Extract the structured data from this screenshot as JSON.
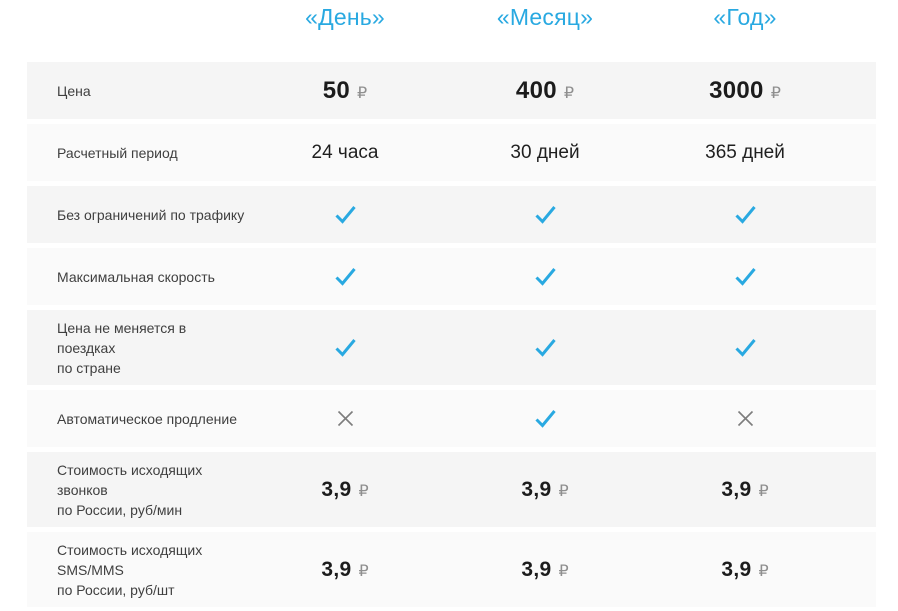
{
  "table": {
    "currency_symbol": "₽",
    "accent_color": "#29a9e1",
    "cross_color": "#7d7d7d",
    "plans": [
      "«День»",
      "«Месяц»",
      "«Год»"
    ],
    "rows": [
      {
        "label": "Цена",
        "type": "price",
        "size": "big",
        "values": [
          "50",
          "400",
          "3000"
        ]
      },
      {
        "label": "Расчетный период",
        "type": "text",
        "values": [
          "24 часа",
          "30 дней",
          "365 дней"
        ]
      },
      {
        "label": "Без ограничений по трафику",
        "type": "bool",
        "values": [
          true,
          true,
          true
        ]
      },
      {
        "label": "Максимальная скорость",
        "type": "bool",
        "values": [
          true,
          true,
          true
        ]
      },
      {
        "label": "Цена не меняется в поездках\nпо стране",
        "type": "bool",
        "values": [
          true,
          true,
          true
        ]
      },
      {
        "label": "Автоматическое продление",
        "type": "bool",
        "values": [
          false,
          true,
          false
        ]
      },
      {
        "label": "Стоимость исходящих звонков\nпо России, руб/мин",
        "type": "price",
        "size": "normal",
        "values": [
          "3,9",
          "3,9",
          "3,9"
        ]
      },
      {
        "label": "Стоимость исходящих SMS/MMS\nпо России, руб/шт",
        "type": "price",
        "size": "normal",
        "values": [
          "3,9",
          "3,9",
          "3,9"
        ]
      }
    ]
  }
}
